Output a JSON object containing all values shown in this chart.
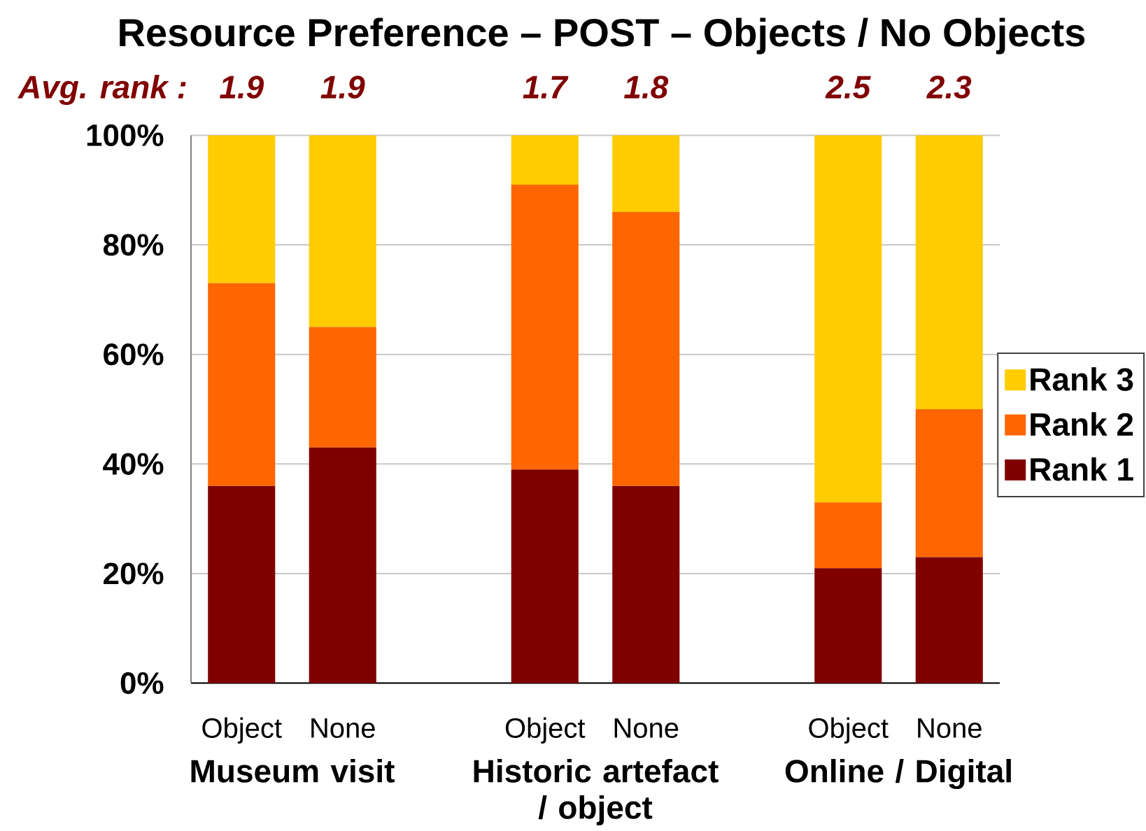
{
  "chart_data": {
    "type": "bar",
    "title": "Resource Preference – POST – Objects / No Objects",
    "categories": [
      "Object",
      "None",
      null,
      "Object",
      "None",
      null,
      "Object",
      "None"
    ],
    "series": [
      {
        "name": "Rank 1",
        "color": "#800000",
        "values": [
          36,
          43,
          null,
          39,
          36,
          null,
          21,
          23
        ]
      },
      {
        "name": "Rank 2",
        "color": "#ff6600",
        "values": [
          37,
          22,
          null,
          52,
          50,
          null,
          12,
          27
        ]
      },
      {
        "name": "Rank 3",
        "color": "#ffcc00",
        "values": [
          27,
          35,
          null,
          9,
          14,
          null,
          67,
          50
        ]
      }
    ],
    "stacked": true,
    "ylim": [
      0,
      100
    ],
    "yticks": [
      {
        "value": 0,
        "label": "0%"
      },
      {
        "value": 20,
        "label": "20%"
      },
      {
        "value": 40,
        "label": "40%"
      },
      {
        "value": 60,
        "label": "60%"
      },
      {
        "value": 80,
        "label": "80%"
      },
      {
        "value": 100,
        "label": "100%"
      }
    ],
    "grid": "y",
    "legend": "right",
    "annotations": [
      "Avg. rank :",
      "1.9",
      "1.9",
      "1.7",
      "1.8",
      "2.5",
      "2.3",
      "Museum visit",
      "Historic artefact / object",
      "Online / Digital"
    ]
  }
}
